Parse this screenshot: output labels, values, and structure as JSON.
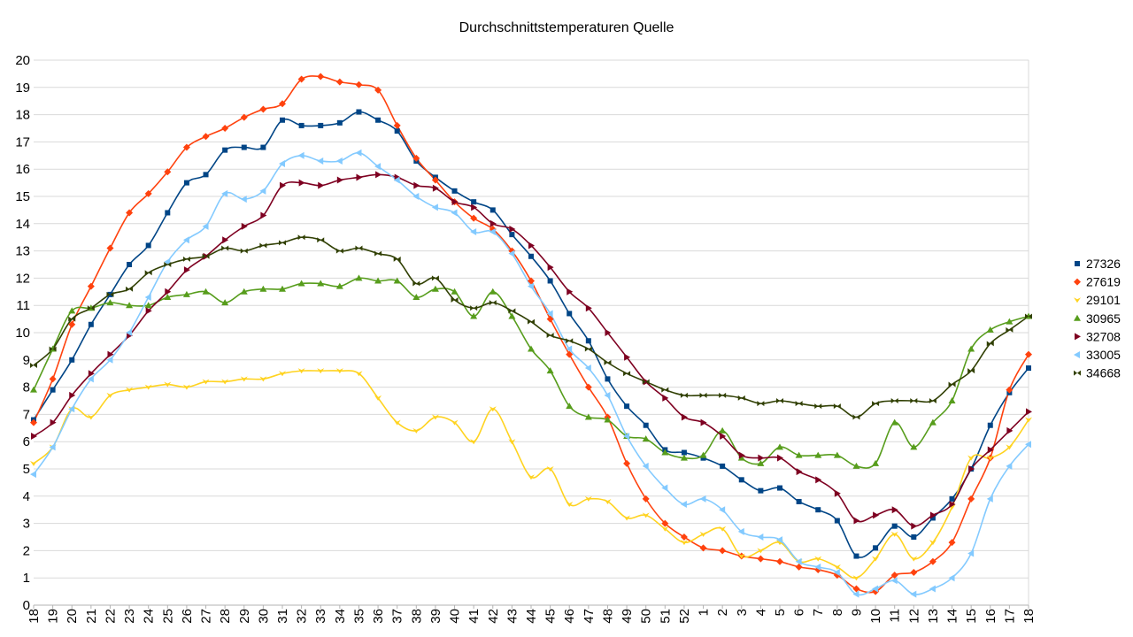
{
  "chart_data": {
    "type": "line",
    "title": "Durchschnittstemperaturen Quelle",
    "xlabel": "",
    "ylabel": "",
    "ylim": [
      0,
      20
    ],
    "y_ticks": [
      "0",
      "1",
      "2",
      "3",
      "4",
      "5",
      "6",
      "7",
      "8",
      "9",
      "10",
      "11",
      "12",
      "13",
      "14",
      "15",
      "16",
      "17",
      "18",
      "19",
      "20"
    ],
    "categories": [
      "18",
      "19",
      "20",
      "21",
      "22",
      "23",
      "24",
      "25",
      "26",
      "27",
      "28",
      "29",
      "30",
      "31",
      "32",
      "33",
      "34",
      "35",
      "36",
      "37",
      "38",
      "39",
      "40",
      "41",
      "42",
      "43",
      "44",
      "45",
      "46",
      "47",
      "48",
      "49",
      "50",
      "51",
      "52",
      "1",
      "2",
      "3",
      "4",
      "5",
      "6",
      "7",
      "8",
      "9",
      "10",
      "11",
      "12",
      "13",
      "14",
      "15",
      "16",
      "17",
      "18"
    ],
    "grid": true,
    "smooth": true,
    "legend_position": "right",
    "series": [
      {
        "name": "27326",
        "color": "#004586",
        "marker": "square",
        "values": [
          6.8,
          7.9,
          9.0,
          10.3,
          11.4,
          12.5,
          13.2,
          14.4,
          15.5,
          15.8,
          16.7,
          16.8,
          16.8,
          17.8,
          17.6,
          17.6,
          17.7,
          18.1,
          17.8,
          17.4,
          16.3,
          15.7,
          15.2,
          14.8,
          14.5,
          13.6,
          12.8,
          11.9,
          10.7,
          9.7,
          8.3,
          7.3,
          6.6,
          5.7,
          5.6,
          5.4,
          5.1,
          4.6,
          4.2,
          4.3,
          3.8,
          3.5,
          3.1,
          1.8,
          2.1,
          2.9,
          2.5,
          3.2,
          3.9,
          5.0,
          6.6,
          7.8,
          8.7
        ]
      },
      {
        "name": "27619",
        "color": "#ff420e",
        "marker": "diamond",
        "values": [
          6.7,
          8.3,
          10.3,
          11.7,
          13.1,
          14.4,
          15.1,
          15.9,
          16.8,
          17.2,
          17.5,
          17.9,
          18.2,
          18.4,
          19.3,
          19.4,
          19.2,
          19.1,
          18.9,
          17.6,
          16.4,
          15.6,
          14.8,
          14.2,
          13.8,
          13.0,
          11.9,
          10.5,
          9.2,
          8.0,
          6.9,
          5.2,
          3.9,
          3.0,
          2.5,
          2.1,
          2.0,
          1.8,
          1.7,
          1.6,
          1.4,
          1.3,
          1.1,
          0.6,
          0.5,
          1.1,
          1.2,
          1.6,
          2.3,
          3.9,
          5.4,
          7.9,
          9.2
        ]
      },
      {
        "name": "29101",
        "color": "#ffd320",
        "marker": "chevron-down",
        "values": [
          5.2,
          5.8,
          7.2,
          6.9,
          7.7,
          7.9,
          8.0,
          8.1,
          8.0,
          8.2,
          8.2,
          8.3,
          8.3,
          8.5,
          8.6,
          8.6,
          8.6,
          8.5,
          7.6,
          6.7,
          6.4,
          6.9,
          6.7,
          6.0,
          7.2,
          6.0,
          4.7,
          5.0,
          3.7,
          3.9,
          3.8,
          3.2,
          3.3,
          2.8,
          2.3,
          2.6,
          2.8,
          1.8,
          2.0,
          2.3,
          1.6,
          1.7,
          1.4,
          1.0,
          1.7,
          2.6,
          1.7,
          2.3,
          3.6,
          5.4,
          5.4,
          5.8,
          6.8
        ]
      },
      {
        "name": "30965",
        "color": "#579d1c",
        "marker": "triangle",
        "values": [
          7.9,
          9.4,
          10.8,
          10.9,
          11.1,
          11.0,
          11.0,
          11.3,
          11.4,
          11.5,
          11.1,
          11.5,
          11.6,
          11.6,
          11.8,
          11.8,
          11.7,
          12.0,
          11.9,
          11.9,
          11.3,
          11.6,
          11.5,
          10.6,
          11.5,
          10.6,
          9.4,
          8.6,
          7.3,
          6.9,
          6.8,
          6.2,
          6.1,
          5.6,
          5.4,
          5.5,
          6.4,
          5.4,
          5.2,
          5.8,
          5.5,
          5.5,
          5.5,
          5.1,
          5.2,
          6.7,
          5.8,
          6.7,
          7.5,
          9.4,
          10.1,
          10.4,
          10.6
        ]
      },
      {
        "name": "32708",
        "color": "#7e0021",
        "marker": "triangle-right",
        "values": [
          6.2,
          6.7,
          7.7,
          8.5,
          9.2,
          9.9,
          10.8,
          11.5,
          12.3,
          12.8,
          13.4,
          13.9,
          14.3,
          15.4,
          15.5,
          15.4,
          15.6,
          15.7,
          15.8,
          15.7,
          15.4,
          15.3,
          14.8,
          14.6,
          14.0,
          13.8,
          13.2,
          12.4,
          11.5,
          10.9,
          10.0,
          9.1,
          8.2,
          7.6,
          6.9,
          6.7,
          6.2,
          5.5,
          5.4,
          5.4,
          4.9,
          4.6,
          4.1,
          3.1,
          3.3,
          3.5,
          2.9,
          3.3,
          3.7,
          5.0,
          5.7,
          6.4,
          7.1
        ]
      },
      {
        "name": "33005",
        "color": "#83caff",
        "marker": "triangle-left",
        "values": [
          4.8,
          5.8,
          7.2,
          8.3,
          9.0,
          10.0,
          11.3,
          12.6,
          13.4,
          13.9,
          15.1,
          14.9,
          15.2,
          16.2,
          16.5,
          16.3,
          16.3,
          16.6,
          16.1,
          15.6,
          15.0,
          14.6,
          14.4,
          13.7,
          13.7,
          12.9,
          11.7,
          10.7,
          9.4,
          8.7,
          7.7,
          6.2,
          5.1,
          4.3,
          3.7,
          3.9,
          3.5,
          2.7,
          2.5,
          2.4,
          1.6,
          1.4,
          1.2,
          0.4,
          0.6,
          0.9,
          0.4,
          0.6,
          1.0,
          1.9,
          3.9,
          5.1,
          5.9
        ]
      },
      {
        "name": "34668",
        "color": "#314004",
        "marker": "bowtie",
        "values": [
          8.8,
          9.4,
          10.5,
          10.9,
          11.4,
          11.6,
          12.2,
          12.5,
          12.7,
          12.8,
          13.1,
          13.0,
          13.2,
          13.3,
          13.5,
          13.4,
          13.0,
          13.1,
          12.9,
          12.7,
          11.8,
          12.0,
          11.2,
          10.9,
          11.1,
          10.8,
          10.4,
          9.9,
          9.7,
          9.4,
          8.9,
          8.5,
          8.2,
          7.9,
          7.7,
          7.7,
          7.7,
          7.6,
          7.4,
          7.5,
          7.4,
          7.3,
          7.3,
          6.9,
          7.4,
          7.5,
          7.5,
          7.5,
          8.1,
          8.6,
          9.6,
          10.1,
          10.6
        ]
      }
    ]
  }
}
